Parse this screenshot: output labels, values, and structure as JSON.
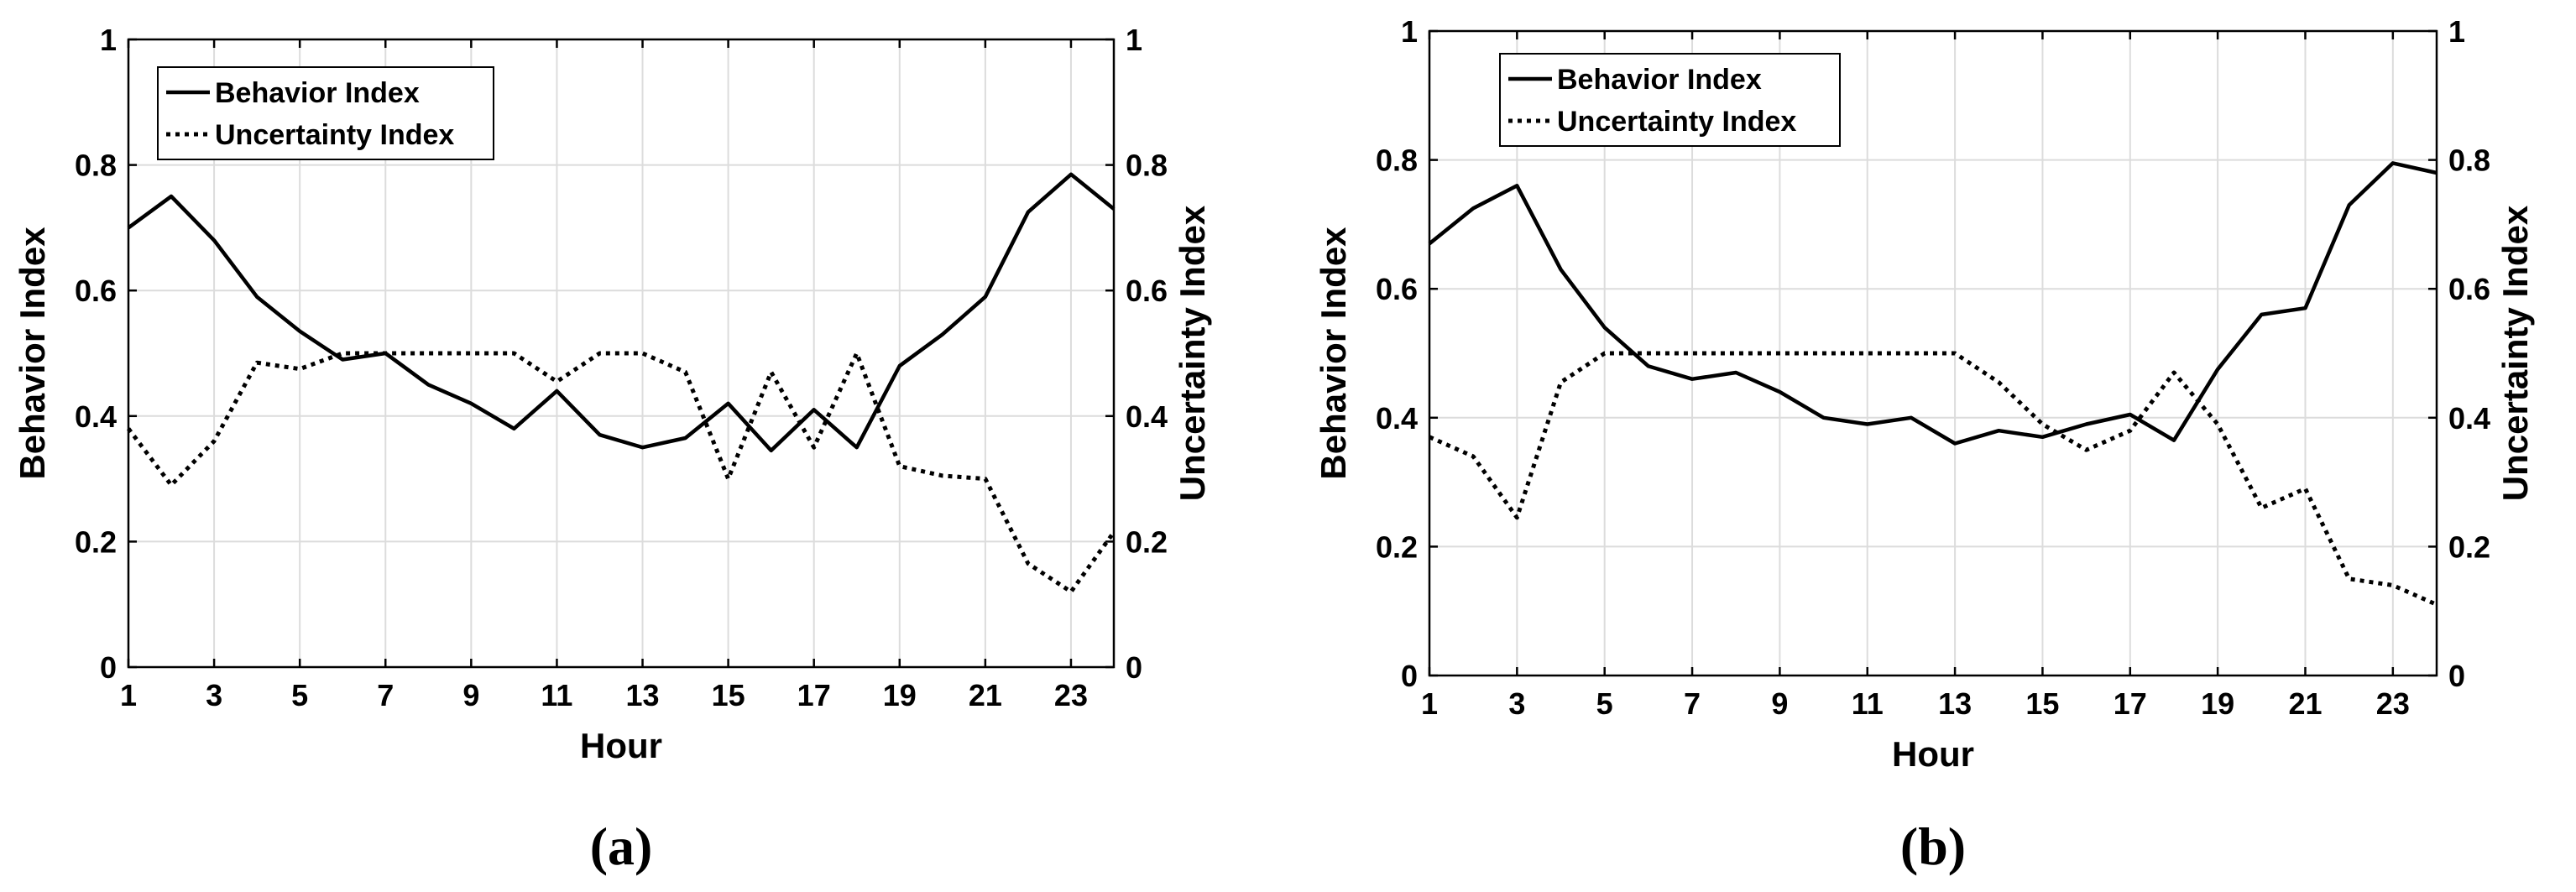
{
  "chart_data": [
    {
      "type": "line",
      "panel_label": "(a)",
      "xlabel": "Hour",
      "ylabel": "Behavior Index",
      "y2label": "Uncertainty Index",
      "xlim": [
        1,
        24
      ],
      "ylim": [
        0,
        1
      ],
      "y2lim": [
        0,
        1
      ],
      "xticks": [
        "1",
        "3",
        "5",
        "7",
        "9",
        "11",
        "13",
        "15",
        "17",
        "19",
        "21",
        "23"
      ],
      "yticks": [
        "0",
        "0.2",
        "0.4",
        "0.6",
        "0.8",
        "1"
      ],
      "y2ticks": [
        "0",
        "0.2",
        "0.4",
        "0.6",
        "0.8",
        "1"
      ],
      "grid": true,
      "legend_position": "top-left",
      "x": [
        1,
        2,
        3,
        4,
        5,
        6,
        7,
        8,
        9,
        10,
        11,
        12,
        13,
        14,
        15,
        16,
        17,
        18,
        19,
        20,
        21,
        22,
        23,
        24
      ],
      "series": [
        {
          "name": "Behavior Index",
          "style": "solid",
          "axis": "left",
          "values": [
            0.7,
            0.75,
            0.68,
            0.59,
            0.535,
            0.49,
            0.5,
            0.45,
            0.42,
            0.38,
            0.44,
            0.37,
            0.35,
            0.365,
            0.42,
            0.345,
            0.41,
            0.35,
            0.48,
            0.53,
            0.59,
            0.725,
            0.785,
            0.73
          ]
        },
        {
          "name": "Uncertainty Index",
          "style": "dotted",
          "axis": "right",
          "values": [
            0.38,
            0.29,
            0.36,
            0.485,
            0.475,
            0.5,
            0.5,
            0.5,
            0.5,
            0.5,
            0.455,
            0.5,
            0.5,
            0.47,
            0.3,
            0.47,
            0.35,
            0.5,
            0.32,
            0.305,
            0.3,
            0.165,
            0.12,
            0.215
          ]
        }
      ]
    },
    {
      "type": "line",
      "panel_label": "(b)",
      "xlabel": "Hour",
      "ylabel": "Behavior Index",
      "y2label": "Uncertainty Index",
      "xlim": [
        1,
        24
      ],
      "ylim": [
        0,
        1
      ],
      "y2lim": [
        0,
        1
      ],
      "xticks": [
        "1",
        "3",
        "5",
        "7",
        "9",
        "11",
        "13",
        "15",
        "17",
        "19",
        "21",
        "23"
      ],
      "yticks": [
        "0",
        "0.2",
        "0.4",
        "0.6",
        "0.8",
        "1"
      ],
      "y2ticks": [
        "0",
        "0.2",
        "0.4",
        "0.6",
        "0.8",
        "1"
      ],
      "grid": true,
      "legend_position": "top-left",
      "x": [
        1,
        2,
        3,
        4,
        5,
        6,
        7,
        8,
        9,
        10,
        11,
        12,
        13,
        14,
        15,
        16,
        17,
        18,
        19,
        20,
        21,
        22,
        23,
        24
      ],
      "series": [
        {
          "name": "Behavior Index",
          "style": "solid",
          "axis": "left",
          "values": [
            0.67,
            0.725,
            0.76,
            0.63,
            0.54,
            0.48,
            0.46,
            0.47,
            0.44,
            0.4,
            0.39,
            0.4,
            0.36,
            0.38,
            0.37,
            0.39,
            0.405,
            0.365,
            0.475,
            0.56,
            0.57,
            0.73,
            0.795,
            0.78
          ]
        },
        {
          "name": "Uncertainty Index",
          "style": "dotted",
          "axis": "right",
          "values": [
            0.37,
            0.34,
            0.245,
            0.455,
            0.5,
            0.5,
            0.5,
            0.5,
            0.5,
            0.5,
            0.5,
            0.5,
            0.5,
            0.455,
            0.39,
            0.35,
            0.38,
            0.47,
            0.39,
            0.26,
            0.29,
            0.15,
            0.14,
            0.11
          ]
        }
      ]
    }
  ]
}
